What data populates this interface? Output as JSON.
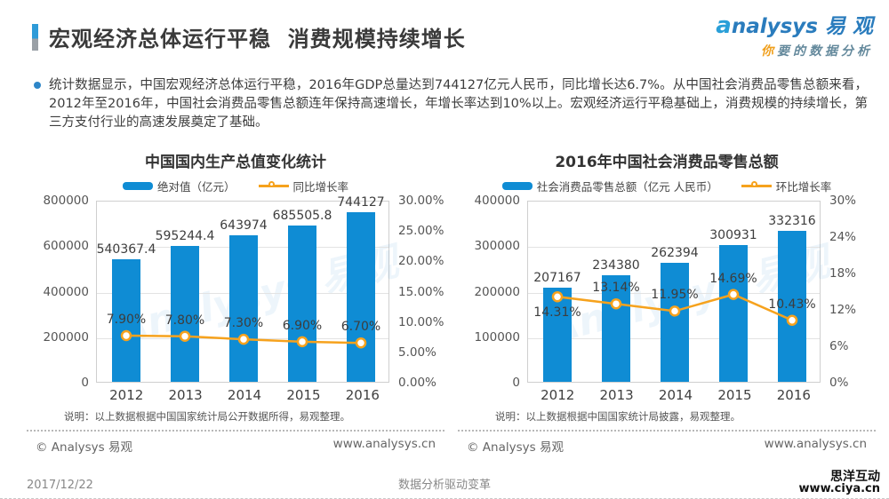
{
  "header": {
    "title": "宏观经济总体运行平稳  消费规模持续增长",
    "logo": {
      "swoosh": "a",
      "brand_rest": "nalysys",
      "brand_cn": " 易 观",
      "tagline_first": "你",
      "tagline_rest": "要的数据分析"
    }
  },
  "intro": {
    "bullet_text": "统计数据显示，中国宏观经济总体运行平稳，2016年GDP总量达到744127亿元人民币，同比增长达6.7%。从中国社会消费品零售总额来看，2012年至2016年，中国社会消费品零售总额连年保持高速增长，年增长率达到10%以上。宏观经济运行平稳基础上，消费规模的持续增长，第三方支付行业的高速发展奠定了基础。"
  },
  "watermark_text": "Analysys 易观",
  "colors": {
    "bar_blue": "#0f8cd4",
    "line_orange": "#f6a21d",
    "accent_blue": "#2e9bd8"
  },
  "chart_data": [
    {
      "type": "bar",
      "title": "中国国内生产总值变化统计",
      "categories": [
        "2012",
        "2013",
        "2014",
        "2015",
        "2016"
      ],
      "bar_series": {
        "name": "绝对值（亿元）",
        "values": [
          540367.4,
          595244.4,
          643974,
          685505.8,
          744127
        ]
      },
      "line_series": {
        "name": "同比增长率",
        "values": [
          7.9,
          7.8,
          7.3,
          6.9,
          6.7
        ],
        "labels": [
          "7.90%",
          "7.80%",
          "7.30%",
          "6.90%",
          "6.70%"
        ],
        "label_pos": [
          "above",
          "above",
          "above",
          "above",
          "above"
        ]
      },
      "left_axis": {
        "max": 800000,
        "ticks": [
          "800000",
          "600000",
          "400000",
          "200000",
          "0"
        ]
      },
      "right_axis": {
        "max": 30,
        "ticks": [
          "30.00%",
          "25.00%",
          "20.00%",
          "15.00%",
          "10.00%",
          "5.00%",
          "0.00%"
        ]
      },
      "legend_position": "top",
      "grid": true,
      "note": "说明：以上数据根据中国国家统计局公开数据所得，易观整理。",
      "copyright": "© Analysys 易观",
      "site": "www.analysys.cn"
    },
    {
      "type": "bar",
      "title": "2016年中国社会消费品零售总额",
      "categories": [
        "2012",
        "2013",
        "2014",
        "2015",
        "2016"
      ],
      "bar_series": {
        "name": "社会消费品零售总额（亿元 人民币）",
        "values": [
          207167,
          234380,
          262394,
          300931,
          332316
        ]
      },
      "line_series": {
        "name": "环比增长率",
        "values": [
          14.31,
          13.14,
          11.95,
          14.69,
          10.43
        ],
        "labels": [
          "14.31%",
          "13.14%",
          "11.95%",
          "14.69%",
          "10.43%"
        ],
        "label_pos": [
          "below",
          "above",
          "above",
          "above",
          "above"
        ]
      },
      "left_axis": {
        "max": 400000,
        "ticks": [
          "400000",
          "300000",
          "200000",
          "100000",
          "0"
        ]
      },
      "right_axis": {
        "max": 30,
        "ticks": [
          "30%",
          "24%",
          "18%",
          "12%",
          "6%",
          "0%"
        ]
      },
      "legend_position": "top",
      "grid": true,
      "note": "说明：以上数据根据中国国家统计局披露，易观整理。",
      "copyright": "© Analysys 易观",
      "site": "www.analysys.cn"
    }
  ],
  "page_footer": {
    "date": "2017/12/22",
    "slogan": "数据分析驱动变革",
    "vendor_name": "思洋互动",
    "vendor_url": "www.ciya.cn"
  }
}
